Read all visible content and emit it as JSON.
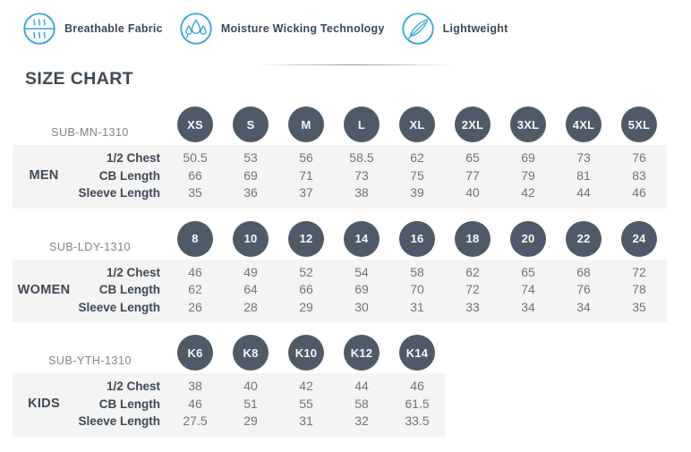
{
  "accent_blue": "#36a3d9",
  "circle_color": "#4e5b66",
  "band_color": "#f4f4f5",
  "title": "SIZE CHART",
  "features": [
    {
      "icon": "breathable-fabric-icon",
      "label": "Breathable Fabric"
    },
    {
      "icon": "moisture-wicking-icon",
      "label": "Moisture Wicking Technology"
    },
    {
      "icon": "feather-lightweight-icon",
      "label": "Lightweight"
    }
  ],
  "sections": [
    {
      "code": "SUB-MN-1310",
      "group": "MEN",
      "sizes": [
        "XS",
        "S",
        "M",
        "L",
        "XL",
        "2XL",
        "3XL",
        "4XL",
        "5XL"
      ],
      "rows": [
        {
          "label": "1/2 Chest",
          "values": [
            "50.5",
            "53",
            "56",
            "58.5",
            "62",
            "65",
            "69",
            "73",
            "76"
          ]
        },
        {
          "label": "CB Length",
          "values": [
            "66",
            "69",
            "71",
            "73",
            "75",
            "77",
            "79",
            "81",
            "83"
          ]
        },
        {
          "label": "Sleeve Length",
          "values": [
            "35",
            "36",
            "37",
            "38",
            "39",
            "40",
            "42",
            "44",
            "46"
          ]
        }
      ]
    },
    {
      "code": "SUB-LDY-1310",
      "group": "WOMEN",
      "sizes": [
        "8",
        "10",
        "12",
        "14",
        "16",
        "18",
        "20",
        "22",
        "24"
      ],
      "rows": [
        {
          "label": "1/2 Chest",
          "values": [
            "46",
            "49",
            "52",
            "54",
            "58",
            "62",
            "65",
            "68",
            "72"
          ]
        },
        {
          "label": "CB Length",
          "values": [
            "62",
            "64",
            "66",
            "69",
            "70",
            "72",
            "74",
            "76",
            "78"
          ]
        },
        {
          "label": "Sleeve Length",
          "values": [
            "26",
            "28",
            "29",
            "30",
            "31",
            "33",
            "34",
            "34",
            "35"
          ]
        }
      ]
    },
    {
      "code": "SUB-YTH-1310",
      "group": "KIDS",
      "sizes": [
        "K6",
        "K8",
        "K10",
        "K12",
        "K14"
      ],
      "rows": [
        {
          "label": "1/2 Chest",
          "values": [
            "38",
            "40",
            "42",
            "44",
            "46"
          ]
        },
        {
          "label": "CB Length",
          "values": [
            "46",
            "51",
            "55",
            "58",
            "61.5"
          ]
        },
        {
          "label": "Sleeve Length",
          "values": [
            "27.5",
            "29",
            "31",
            "32",
            "33.5"
          ]
        }
      ]
    }
  ]
}
